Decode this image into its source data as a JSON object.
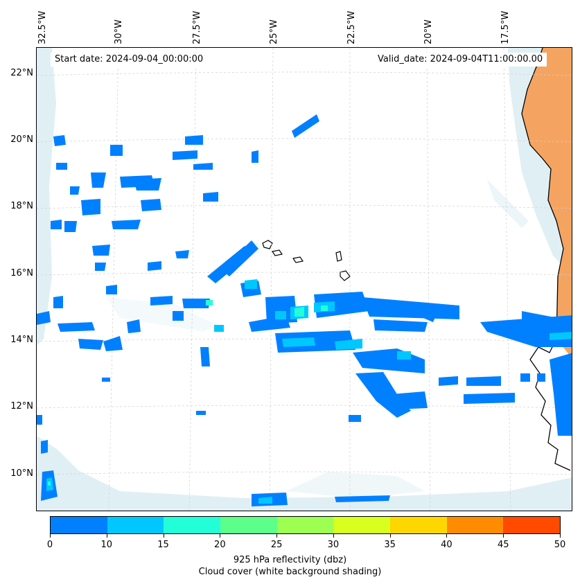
{
  "header": {
    "start_date": "Start date: 2024-09-04_00:00:00",
    "valid_date": "Valid_date: 2024-09-04T11:00:00.00"
  },
  "axes": {
    "longitude_labels": [
      "32.5°W",
      "30°W",
      "27.5°W",
      "25°W",
      "22.5°W",
      "20°W",
      "17.5°W"
    ],
    "latitude_labels": [
      "22°N",
      "20°N",
      "18°N",
      "16°N",
      "14°N",
      "12°N",
      "10°N"
    ]
  },
  "colorbar": {
    "ticks": [
      "0",
      "10",
      "15",
      "20",
      "25",
      "30",
      "35",
      "40",
      "45",
      "50"
    ],
    "colors": [
      "#0080ff",
      "#00c8ff",
      "#22ffd8",
      "#5cff8a",
      "#9dff52",
      "#d8ff1e",
      "#ffd700",
      "#ff8c00",
      "#ff4a00"
    ],
    "label": "925 hPa reflectivity (dbz)",
    "sublabel": "Cloud cover (white background shading)"
  },
  "colors": {
    "land": "#f4a460",
    "cloud_shading": "#d6eaf0",
    "reflectivity_low": "#0080ff",
    "reflectivity_mid": "#00c8ff",
    "reflectivity_high": "#22ffd8",
    "coast": "#000000",
    "grid": "#cccccc"
  }
}
